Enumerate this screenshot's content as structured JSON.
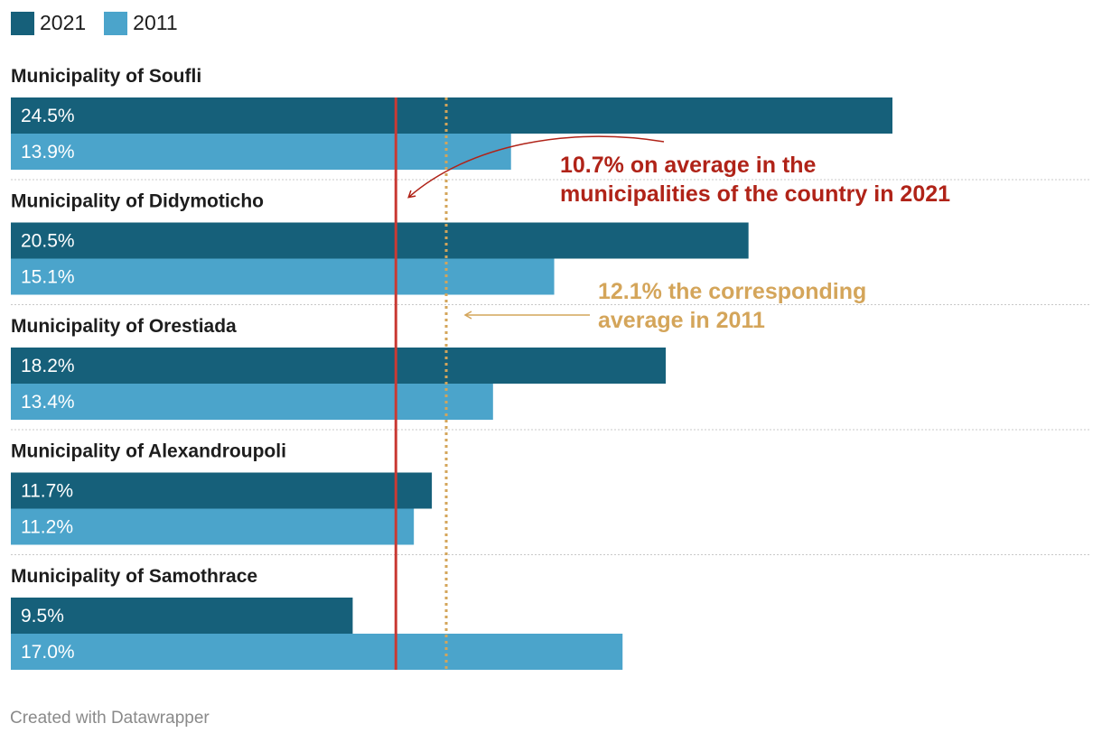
{
  "legend": {
    "items": [
      {
        "label": "2021",
        "color": "#16607a"
      },
      {
        "label": "2011",
        "color": "#4ba4cb"
      }
    ]
  },
  "chart_data": {
    "type": "bar",
    "orientation": "horizontal",
    "categories": [
      "Municipality of Soufli",
      "Municipality of Didymoticho",
      "Municipality of Orestiada",
      "Municipality of Alexandroupoli",
      "Municipality of Samothrace"
    ],
    "series": [
      {
        "name": "2021",
        "color": "#16607a",
        "values": [
          24.5,
          20.5,
          18.2,
          11.7,
          9.5
        ],
        "labels": [
          "24.5%",
          "20.5%",
          "18.2%",
          "11.7%",
          "9.5%"
        ]
      },
      {
        "name": "2011",
        "color": "#4ba4cb",
        "values": [
          13.9,
          15.1,
          13.4,
          11.2,
          17.0
        ],
        "labels": [
          "13.9%",
          "15.1%",
          "13.4%",
          "11.2%",
          "17.0%"
        ]
      }
    ],
    "reference_lines": [
      {
        "value": 10.7,
        "color": "#c93a34",
        "style": "solid",
        "label": "10.7% on average in the municipalities of the country in 2021",
        "label_lines": [
          "10.7% on average in the",
          "municipalities of the country in 2021"
        ]
      },
      {
        "value": 12.1,
        "color": "#d4a55a",
        "style": "dotted",
        "label": "12.1% the corresponding average in 2011",
        "label_lines": [
          "12.1% the corresponding",
          "average in 2011"
        ]
      }
    ],
    "xlim": [
      0,
      24.5
    ],
    "grid": false
  },
  "footer": {
    "credit": "Created with Datawrapper"
  }
}
